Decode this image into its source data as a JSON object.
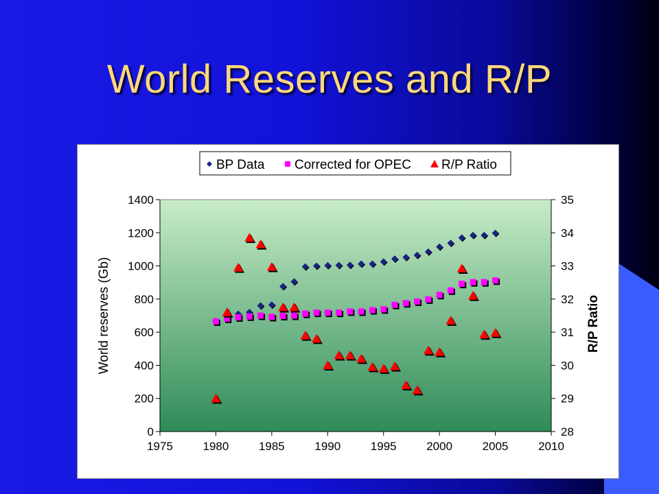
{
  "slide": {
    "title": "World Reserves and R/P"
  },
  "colors": {
    "bp_data": "#1a237e",
    "corrected": "#ff00ff",
    "rp_ratio": "#ff0000",
    "plot_top": "#c8ecc8",
    "plot_bottom": "#2e8b57"
  },
  "chart_data": {
    "type": "scatter",
    "title": "",
    "xlabel": "",
    "ylabel": "World reserves (Gb)",
    "y2label": "R/P Ratio",
    "xlim": [
      1975,
      2010
    ],
    "ylim": [
      0,
      1400
    ],
    "y2lim": [
      28,
      35
    ],
    "x_ticks": [
      "1975",
      "1980",
      "1985",
      "1990",
      "1995",
      "2000",
      "2005",
      "2010"
    ],
    "y_ticks": [
      "0",
      "200",
      "400",
      "600",
      "800",
      "1000",
      "1200",
      "1400"
    ],
    "y2_ticks": [
      "28",
      "29",
      "30",
      "31",
      "32",
      "33",
      "34",
      "35"
    ],
    "legend_position": "top",
    "grid": false,
    "series": [
      {
        "name": "BP Data",
        "axis": "left",
        "marker": "diamond",
        "points": [
          [
            1980,
            667
          ],
          [
            1981,
            680
          ],
          [
            1982,
            710
          ],
          [
            1983,
            720
          ],
          [
            1984,
            760
          ],
          [
            1985,
            765
          ],
          [
            1986,
            876
          ],
          [
            1987,
            905
          ],
          [
            1988,
            995
          ],
          [
            1989,
            1000
          ],
          [
            1990,
            1003
          ],
          [
            1991,
            1004
          ],
          [
            1992,
            1005
          ],
          [
            1993,
            1012
          ],
          [
            1994,
            1012
          ],
          [
            1995,
            1025
          ],
          [
            1996,
            1043
          ],
          [
            1997,
            1052
          ],
          [
            1998,
            1065
          ],
          [
            1999,
            1085
          ],
          [
            2000,
            1115
          ],
          [
            2001,
            1138
          ],
          [
            2002,
            1170
          ],
          [
            2003,
            1185
          ],
          [
            2004,
            1185
          ],
          [
            2005,
            1198
          ]
        ]
      },
      {
        "name": "Corrected for OPEC",
        "axis": "left",
        "marker": "square",
        "points": [
          [
            1980,
            665
          ],
          [
            1981,
            682
          ],
          [
            1982,
            690
          ],
          [
            1983,
            695
          ],
          [
            1984,
            700
          ],
          [
            1985,
            692
          ],
          [
            1986,
            698
          ],
          [
            1987,
            700
          ],
          [
            1988,
            712
          ],
          [
            1989,
            718
          ],
          [
            1990,
            718
          ],
          [
            1991,
            718
          ],
          [
            1992,
            725
          ],
          [
            1993,
            725
          ],
          [
            1994,
            733
          ],
          [
            1995,
            738
          ],
          [
            1996,
            765
          ],
          [
            1997,
            775
          ],
          [
            1998,
            785
          ],
          [
            1999,
            798
          ],
          [
            2000,
            825
          ],
          [
            2001,
            852
          ],
          [
            2002,
            892
          ],
          [
            2003,
            902
          ],
          [
            2004,
            902
          ],
          [
            2005,
            912
          ]
        ]
      },
      {
        "name": "R/P Ratio",
        "axis": "right",
        "marker": "triangle",
        "points": [
          [
            1980,
            29.0
          ],
          [
            1981,
            31.6
          ],
          [
            1982,
            32.95
          ],
          [
            1983,
            33.85
          ],
          [
            1984,
            33.65
          ],
          [
            1985,
            32.97
          ],
          [
            1986,
            31.75
          ],
          [
            1987,
            31.75
          ],
          [
            1988,
            30.9
          ],
          [
            1989,
            30.8
          ],
          [
            1990,
            30.0
          ],
          [
            1991,
            30.3
          ],
          [
            1992,
            30.3
          ],
          [
            1993,
            30.2
          ],
          [
            1994,
            29.95
          ],
          [
            1995,
            29.9
          ],
          [
            1996,
            29.97
          ],
          [
            1997,
            29.4
          ],
          [
            1998,
            29.25
          ],
          [
            1999,
            30.45
          ],
          [
            2000,
            30.4
          ],
          [
            2001,
            31.35
          ],
          [
            2002,
            32.92
          ],
          [
            2003,
            32.1
          ],
          [
            2004,
            30.93
          ],
          [
            2005,
            30.98
          ]
        ]
      }
    ]
  }
}
